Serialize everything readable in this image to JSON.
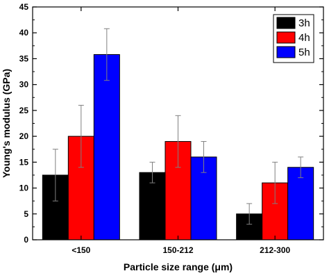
{
  "chart_data": {
    "type": "bar",
    "xlabel": "Particle size range (μm)",
    "ylabel": "Young's modulus (GPa)",
    "ylim": [
      0,
      45
    ],
    "yticks": [
      "0",
      "5",
      "10",
      "15",
      "20",
      "25",
      "30",
      "35",
      "40",
      "45"
    ],
    "categories": [
      "<150",
      "150-212",
      "212-300"
    ],
    "series": [
      {
        "name": "3h",
        "color": "#000000",
        "values": [
          12.5,
          13,
          5
        ],
        "errors": [
          5,
          2,
          2
        ]
      },
      {
        "name": "4h",
        "color": "#ff0000",
        "values": [
          20,
          19,
          11
        ],
        "errors": [
          6,
          5,
          4
        ]
      },
      {
        "name": "5h",
        "color": "#0000ff",
        "values": [
          35.8,
          16,
          14
        ],
        "errors": [
          5,
          3,
          2
        ]
      }
    ],
    "legend_position": "top-right",
    "grid": false
  }
}
